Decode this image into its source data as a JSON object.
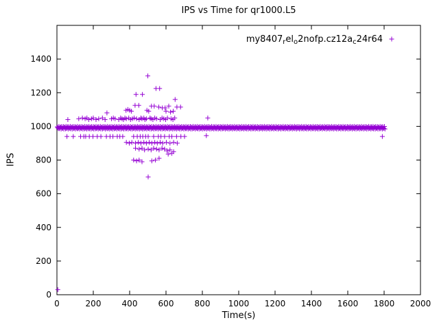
{
  "chart_data": {
    "type": "scatter",
    "title": "IPS vs Time for qr1000.L5",
    "xlabel": "Time(s)",
    "ylabel": "IPS",
    "xlim": [
      0,
      2000
    ],
    "ylim": [
      0,
      1600
    ],
    "xticks": [
      0,
      200,
      400,
      600,
      800,
      1000,
      1200,
      1400,
      1600,
      1800,
      2000
    ],
    "yticks": [
      0,
      200,
      400,
      600,
      800,
      1000,
      1200,
      1400
    ],
    "grid": false,
    "marker": "plus",
    "color": "#9400d3",
    "legend": {
      "label": "my8407_rel_o2nofp.cz12a_c24r64",
      "position": "top-right",
      "segments": [
        {
          "t": "my8407"
        },
        {
          "t": "r",
          "sub": true
        },
        {
          "t": "el"
        },
        {
          "t": "o",
          "sub": true
        },
        {
          "t": "2nofp.cz12a"
        },
        {
          "t": "c",
          "sub": true
        },
        {
          "t": "24r64"
        }
      ]
    },
    "series": [
      {
        "name": "my8407_rel_o2nofp.cz12a_c24r64",
        "band": {
          "x_min": 2,
          "x_max": 1805,
          "x_step": 3,
          "y_center": 992,
          "y_half_spread": 8
        },
        "points": [
          [
            5,
            30
          ],
          [
            500,
            1300
          ],
          [
            545,
            1225
          ],
          [
            565,
            1225
          ],
          [
            435,
            1190
          ],
          [
            470,
            1190
          ],
          [
            650,
            1160
          ],
          [
            430,
            1125
          ],
          [
            450,
            1125
          ],
          [
            520,
            1120
          ],
          [
            535,
            1120
          ],
          [
            560,
            1115
          ],
          [
            580,
            1110
          ],
          [
            595,
            1110
          ],
          [
            615,
            1120
          ],
          [
            660,
            1115
          ],
          [
            680,
            1115
          ],
          [
            275,
            1080
          ],
          [
            380,
            1095
          ],
          [
            390,
            1100
          ],
          [
            400,
            1095
          ],
          [
            410,
            1090
          ],
          [
            495,
            1095
          ],
          [
            505,
            1090
          ],
          [
            600,
            1090
          ],
          [
            625,
            1085
          ],
          [
            640,
            1090
          ],
          [
            830,
            1050
          ],
          [
            60,
            1040
          ],
          [
            120,
            1045
          ],
          [
            140,
            1050
          ],
          [
            155,
            1045
          ],
          [
            165,
            1050
          ],
          [
            175,
            1040
          ],
          [
            190,
            1045
          ],
          [
            200,
            1050
          ],
          [
            215,
            1040
          ],
          [
            230,
            1045
          ],
          [
            250,
            1050
          ],
          [
            265,
            1040
          ],
          [
            300,
            1045
          ],
          [
            310,
            1050
          ],
          [
            320,
            1045
          ],
          [
            340,
            1040
          ],
          [
            350,
            1050
          ],
          [
            358,
            1045
          ],
          [
            366,
            1040
          ],
          [
            374,
            1050
          ],
          [
            382,
            1045
          ],
          [
            395,
            1050
          ],
          [
            405,
            1040
          ],
          [
            415,
            1045
          ],
          [
            425,
            1050
          ],
          [
            438,
            1045
          ],
          [
            452,
            1040
          ],
          [
            462,
            1050
          ],
          [
            468,
            1045
          ],
          [
            478,
            1050
          ],
          [
            484,
            1040
          ],
          [
            492,
            1045
          ],
          [
            512,
            1050
          ],
          [
            518,
            1045
          ],
          [
            528,
            1040
          ],
          [
            538,
            1050
          ],
          [
            548,
            1045
          ],
          [
            568,
            1040
          ],
          [
            578,
            1050
          ],
          [
            588,
            1045
          ],
          [
            598,
            1040
          ],
          [
            608,
            1050
          ],
          [
            628,
            1045
          ],
          [
            638,
            1040
          ],
          [
            648,
            1050
          ],
          [
            55,
            940
          ],
          [
            90,
            940
          ],
          [
            130,
            940
          ],
          [
            148,
            940
          ],
          [
            158,
            940
          ],
          [
            178,
            940
          ],
          [
            198,
            940
          ],
          [
            222,
            940
          ],
          [
            242,
            940
          ],
          [
            272,
            940
          ],
          [
            292,
            940
          ],
          [
            308,
            940
          ],
          [
            332,
            940
          ],
          [
            346,
            940
          ],
          [
            362,
            940
          ],
          [
            422,
            940
          ],
          [
            442,
            940
          ],
          [
            458,
            940
          ],
          [
            472,
            940
          ],
          [
            488,
            940
          ],
          [
            502,
            940
          ],
          [
            532,
            940
          ],
          [
            558,
            940
          ],
          [
            572,
            940
          ],
          [
            592,
            940
          ],
          [
            618,
            940
          ],
          [
            632,
            940
          ],
          [
            658,
            940
          ],
          [
            682,
            940
          ],
          [
            702,
            940
          ],
          [
            822,
            945
          ],
          [
            1790,
            940
          ],
          [
            382,
            905
          ],
          [
            398,
            900
          ],
          [
            412,
            905
          ],
          [
            432,
            900
          ],
          [
            448,
            905
          ],
          [
            462,
            900
          ],
          [
            478,
            905
          ],
          [
            492,
            900
          ],
          [
            508,
            905
          ],
          [
            522,
            900
          ],
          [
            538,
            905
          ],
          [
            552,
            900
          ],
          [
            568,
            905
          ],
          [
            582,
            900
          ],
          [
            602,
            905
          ],
          [
            622,
            900
          ],
          [
            642,
            905
          ],
          [
            662,
            900
          ],
          [
            432,
            870
          ],
          [
            452,
            865
          ],
          [
            468,
            870
          ],
          [
            482,
            860
          ],
          [
            502,
            865
          ],
          [
            518,
            860
          ],
          [
            532,
            870
          ],
          [
            548,
            865
          ],
          [
            562,
            860
          ],
          [
            578,
            870
          ],
          [
            592,
            865
          ],
          [
            606,
            855
          ],
          [
            622,
            860
          ],
          [
            642,
            850
          ],
          [
            422,
            800
          ],
          [
            438,
            795
          ],
          [
            452,
            800
          ],
          [
            468,
            790
          ],
          [
            522,
            795
          ],
          [
            542,
            800
          ],
          [
            562,
            810
          ],
          [
            612,
            835
          ],
          [
            632,
            840
          ],
          [
            502,
            700
          ]
        ]
      }
    ]
  }
}
